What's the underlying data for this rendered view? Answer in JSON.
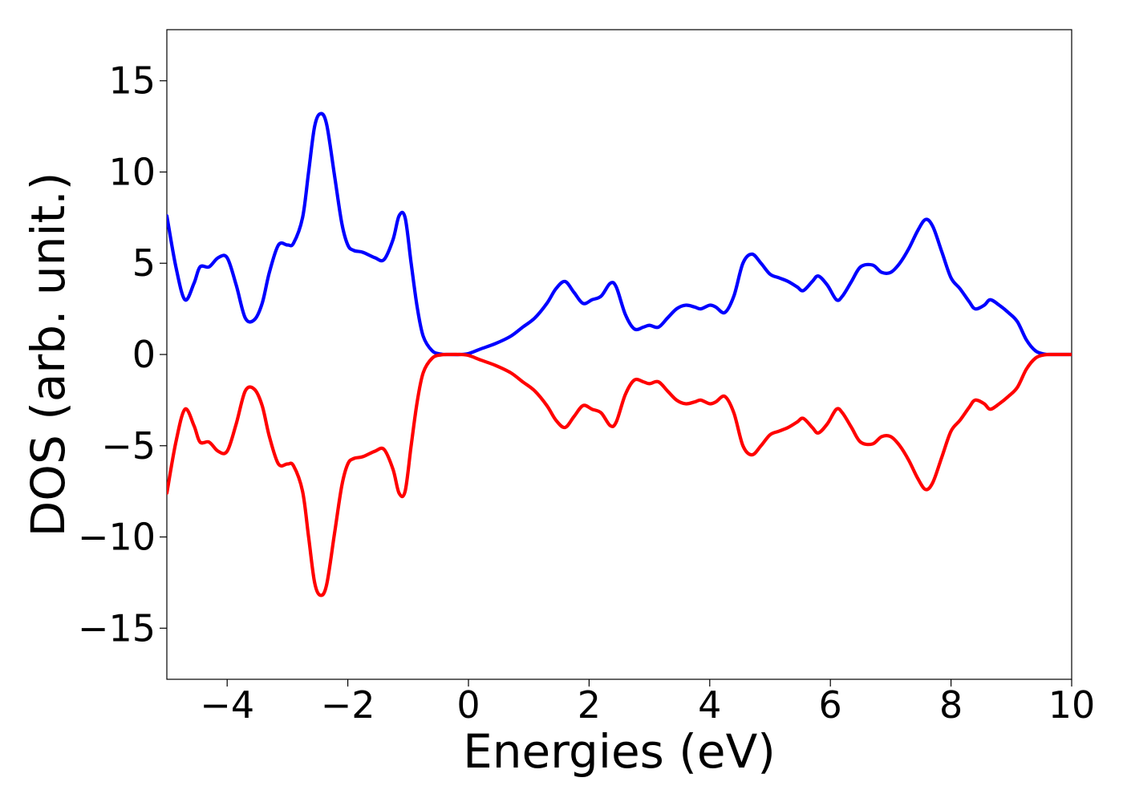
{
  "chart_data": {
    "type": "line",
    "title": "",
    "xlabel": "Energies (eV)",
    "ylabel": "DOS (arb. unit.)",
    "xlim": [
      -5,
      10
    ],
    "ylim": [
      -17.8,
      17.8
    ],
    "xticks": [
      -4,
      -2,
      0,
      2,
      4,
      6,
      8,
      10
    ],
    "yticks": [
      -15,
      -10,
      -5,
      0,
      5,
      10,
      15
    ],
    "xtick_labels": [
      "−4",
      "−2",
      "0",
      "2",
      "4",
      "6",
      "8",
      "10"
    ],
    "ytick_labels": [
      "−15",
      "−10",
      "−5",
      "0",
      "5",
      "10",
      "15"
    ],
    "grid": false,
    "legend": "none",
    "series": [
      {
        "color": "#0000ff",
        "x": [
          -5.0,
          -4.85,
          -4.7,
          -4.55,
          -4.45,
          -4.3,
          -4.15,
          -4.0,
          -3.85,
          -3.7,
          -3.55,
          -3.42,
          -3.3,
          -3.15,
          -3.0,
          -2.9,
          -2.75,
          -2.65,
          -2.55,
          -2.45,
          -2.35,
          -2.22,
          -2.1,
          -2.0,
          -1.9,
          -1.75,
          -1.55,
          -1.4,
          -1.25,
          -1.15,
          -1.05,
          -0.95,
          -0.85,
          -0.75,
          -0.6,
          -0.45,
          -0.3,
          -0.15,
          0.0,
          0.2,
          0.45,
          0.7,
          0.9,
          1.1,
          1.3,
          1.45,
          1.6,
          1.75,
          1.9,
          2.05,
          2.2,
          2.35,
          2.45,
          2.6,
          2.75,
          2.9,
          3.0,
          3.15,
          3.3,
          3.45,
          3.6,
          3.75,
          3.85,
          4.0,
          4.1,
          4.25,
          4.4,
          4.55,
          4.7,
          4.85,
          5.0,
          5.15,
          5.3,
          5.45,
          5.55,
          5.7,
          5.8,
          5.95,
          6.1,
          6.2,
          6.35,
          6.5,
          6.7,
          6.85,
          7.0,
          7.15,
          7.3,
          7.45,
          7.58,
          7.7,
          7.85,
          8.0,
          8.15,
          8.3,
          8.4,
          8.55,
          8.65,
          8.8,
          8.95,
          9.1,
          9.25,
          9.4,
          9.55,
          9.7,
          10.0
        ],
        "values": [
          7.6,
          4.8,
          3.0,
          3.9,
          4.8,
          4.8,
          5.3,
          5.3,
          3.8,
          2.0,
          1.9,
          2.8,
          4.5,
          6.0,
          6.0,
          6.1,
          7.5,
          10.0,
          12.5,
          13.2,
          12.6,
          9.8,
          7.2,
          6.0,
          5.7,
          5.6,
          5.3,
          5.2,
          6.3,
          7.6,
          7.5,
          5.0,
          2.6,
          1.0,
          0.2,
          0.02,
          0.0,
          0.0,
          0.05,
          0.3,
          0.6,
          1.0,
          1.5,
          2.0,
          2.8,
          3.6,
          4.0,
          3.4,
          2.8,
          3.0,
          3.2,
          3.9,
          3.7,
          2.2,
          1.4,
          1.5,
          1.6,
          1.5,
          2.0,
          2.5,
          2.7,
          2.6,
          2.5,
          2.7,
          2.6,
          2.3,
          3.2,
          5.0,
          5.5,
          5.0,
          4.4,
          4.2,
          4.0,
          3.7,
          3.5,
          4.0,
          4.3,
          3.8,
          3.0,
          3.2,
          4.0,
          4.8,
          4.9,
          4.5,
          4.5,
          5.0,
          5.8,
          6.8,
          7.4,
          7.0,
          5.6,
          4.2,
          3.6,
          2.9,
          2.5,
          2.7,
          3.0,
          2.7,
          2.3,
          1.8,
          0.8,
          0.2,
          0.02,
          0.0,
          0.0
        ]
      },
      {
        "color": "#ff0000",
        "x": [
          -5.0,
          -4.85,
          -4.7,
          -4.55,
          -4.45,
          -4.3,
          -4.15,
          -4.0,
          -3.85,
          -3.7,
          -3.55,
          -3.42,
          -3.3,
          -3.15,
          -3.0,
          -2.9,
          -2.75,
          -2.65,
          -2.55,
          -2.45,
          -2.35,
          -2.22,
          -2.1,
          -2.0,
          -1.9,
          -1.75,
          -1.55,
          -1.4,
          -1.25,
          -1.15,
          -1.05,
          -0.95,
          -0.85,
          -0.75,
          -0.6,
          -0.45,
          -0.3,
          -0.15,
          0.0,
          0.2,
          0.45,
          0.7,
          0.9,
          1.1,
          1.3,
          1.45,
          1.6,
          1.75,
          1.9,
          2.05,
          2.2,
          2.35,
          2.45,
          2.6,
          2.75,
          2.9,
          3.0,
          3.15,
          3.3,
          3.45,
          3.6,
          3.75,
          3.85,
          4.0,
          4.1,
          4.25,
          4.4,
          4.55,
          4.7,
          4.85,
          5.0,
          5.15,
          5.3,
          5.45,
          5.55,
          5.7,
          5.8,
          5.95,
          6.1,
          6.2,
          6.35,
          6.5,
          6.7,
          6.85,
          7.0,
          7.15,
          7.3,
          7.45,
          7.58,
          7.7,
          7.85,
          8.0,
          8.15,
          8.3,
          8.4,
          8.55,
          8.65,
          8.8,
          8.95,
          9.1,
          9.25,
          9.4,
          9.55,
          9.7,
          10.0
        ],
        "values": [
          -7.6,
          -4.8,
          -3.0,
          -3.9,
          -4.8,
          -4.8,
          -5.3,
          -5.3,
          -3.8,
          -2.0,
          -1.9,
          -2.8,
          -4.5,
          -6.0,
          -6.0,
          -6.1,
          -7.5,
          -10.0,
          -12.5,
          -13.2,
          -12.6,
          -9.8,
          -7.2,
          -6.0,
          -5.7,
          -5.6,
          -5.3,
          -5.2,
          -6.3,
          -7.6,
          -7.5,
          -5.0,
          -2.6,
          -1.0,
          -0.2,
          -0.02,
          0.0,
          0.0,
          -0.05,
          -0.3,
          -0.6,
          -1.0,
          -1.5,
          -2.0,
          -2.8,
          -3.6,
          -4.0,
          -3.4,
          -2.8,
          -3.0,
          -3.2,
          -3.9,
          -3.7,
          -2.2,
          -1.4,
          -1.5,
          -1.6,
          -1.5,
          -2.0,
          -2.5,
          -2.7,
          -2.6,
          -2.5,
          -2.7,
          -2.6,
          -2.3,
          -3.2,
          -5.0,
          -5.5,
          -5.0,
          -4.4,
          -4.2,
          -4.0,
          -3.7,
          -3.5,
          -4.0,
          -4.3,
          -3.8,
          -3.0,
          -3.2,
          -4.0,
          -4.8,
          -4.9,
          -4.5,
          -4.5,
          -5.0,
          -5.8,
          -6.8,
          -7.4,
          -7.0,
          -5.6,
          -4.2,
          -3.6,
          -2.9,
          -2.5,
          -2.7,
          -3.0,
          -2.7,
          -2.3,
          -1.8,
          -0.8,
          -0.2,
          -0.02,
          0.0,
          0.0
        ]
      }
    ]
  }
}
